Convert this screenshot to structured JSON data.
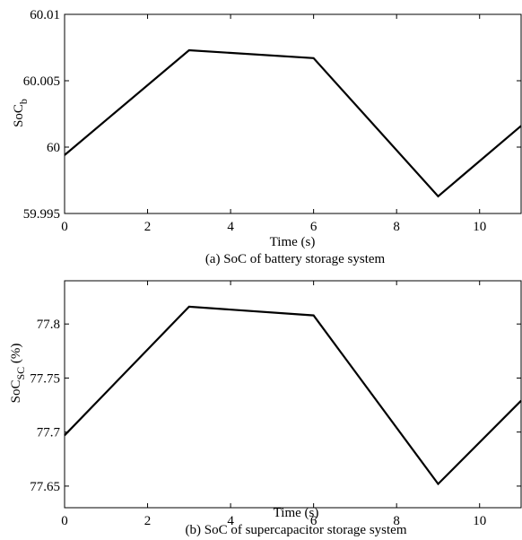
{
  "chart_data": [
    {
      "type": "line",
      "caption": "(a) SoC of battery storage system",
      "xlabel": "Time (s)",
      "ylabel": {
        "base": "SoC",
        "subscript": "b",
        "suffix": ""
      },
      "xlim": [
        0,
        11
      ],
      "ylim": [
        59.995,
        60.01
      ],
      "xticks": [
        "0",
        "2",
        "4",
        "6",
        "8",
        "10"
      ],
      "yticks": [
        "59.995",
        "60",
        "60.005",
        "60.01"
      ],
      "grid": false,
      "series": [
        {
          "x": [
            0,
            3,
            6,
            9,
            11
          ],
          "y": [
            59.9994,
            60.0073,
            60.0067,
            59.9963,
            60.0016
          ]
        }
      ]
    },
    {
      "type": "line",
      "caption": "(b) SoC of supercapacitor storage system",
      "xlabel": "Time (s)",
      "ylabel": {
        "base": "SoC",
        "subscript": "SC",
        "suffix": " (%)"
      },
      "xlim": [
        0,
        11
      ],
      "ylim": [
        77.63,
        77.84
      ],
      "xticks": [
        "0",
        "2",
        "4",
        "6",
        "8",
        "10"
      ],
      "yticks": [
        "77.65",
        "77.7",
        "77.75",
        "77.8"
      ],
      "grid": false,
      "series": [
        {
          "x": [
            0,
            3,
            6,
            9,
            11
          ],
          "y": [
            77.697,
            77.816,
            77.808,
            77.652,
            77.729
          ]
        }
      ]
    }
  ]
}
